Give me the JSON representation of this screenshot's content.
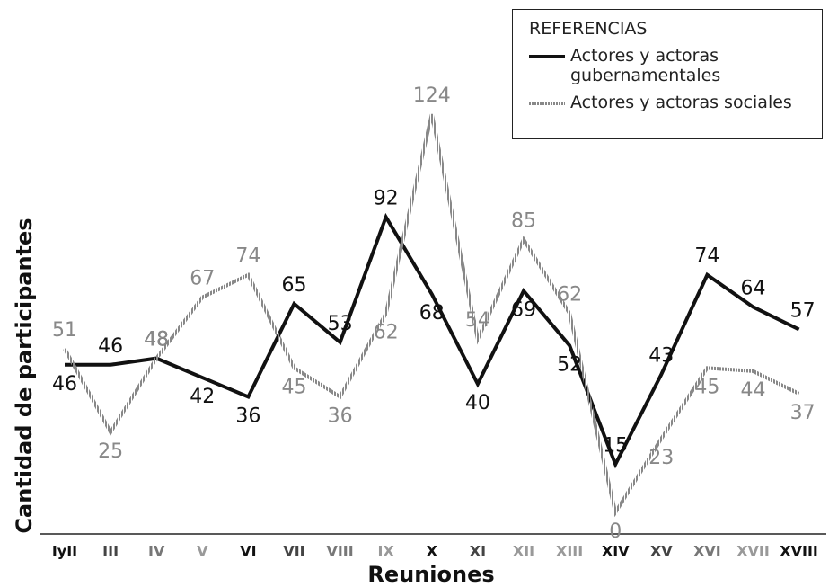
{
  "chart_data": {
    "type": "line",
    "y_label": "Cantidad de participantes",
    "x_label": "Reuniones",
    "legend_title": "REFERENCIAS",
    "categories": [
      "IyII",
      "III",
      "IV",
      "V",
      "VI",
      "VII",
      "VIII",
      "IX",
      "X",
      "XI",
      "XII",
      "XIII",
      "XIV",
      "XV",
      "XVI",
      "XVII",
      "XVIII"
    ],
    "category_colors": [
      "#111",
      "#444",
      "#777",
      "#999",
      "#111",
      "#444",
      "#777",
      "#999",
      "#111",
      "#444",
      "#999",
      "#999",
      "#111",
      "#444",
      "#777",
      "#999",
      "#111"
    ],
    "series": [
      {
        "name": "Actores y actoras gubernamentales",
        "color": "#111111",
        "values": [
          46,
          46,
          48,
          42,
          36,
          65,
          53,
          92,
          68,
          40,
          69,
          52,
          15,
          43,
          74,
          64,
          57
        ]
      },
      {
        "name": "Actores y actoras sociales",
        "color": "#888888",
        "values": [
          51,
          25,
          48,
          67,
          74,
          45,
          36,
          62,
          124,
          54,
          85,
          62,
          0,
          23,
          45,
          44,
          37
        ]
      }
    ],
    "ylim": [
      -6.7,
      140
    ]
  }
}
